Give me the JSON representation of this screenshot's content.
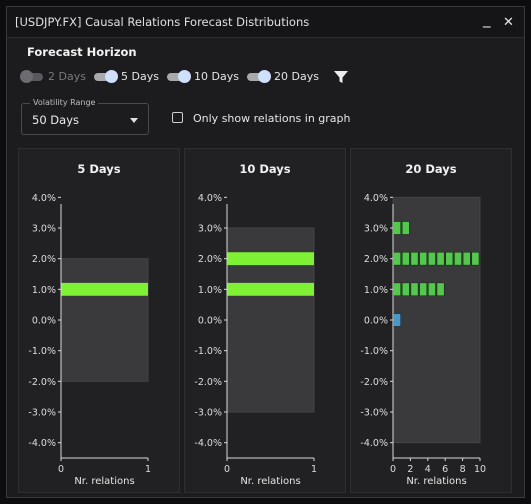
{
  "window": {
    "title": "[USDJPY.FX] Causal Relations Forecast Distributions"
  },
  "window_controls": {
    "minimize": "_",
    "close": "✕"
  },
  "forecast_horizon": {
    "heading": "Forecast Horizon",
    "toggles": [
      {
        "label": "2 Days",
        "enabled": false
      },
      {
        "label": "5 Days",
        "enabled": true
      },
      {
        "label": "10 Days",
        "enabled": true
      },
      {
        "label": "20 Days",
        "enabled": true
      }
    ],
    "filter_icon": "filter-icon"
  },
  "volatility_range": {
    "legend": "Volatility Range",
    "value": "50 Days"
  },
  "only_relations": {
    "label": "Only show relations in graph",
    "checked": false
  },
  "colors": {
    "band": "#3a3a3d",
    "bar_green": "#7ef135",
    "square_green": "#52c94a",
    "square_blue": "#4a98c8",
    "axis": "#d9d9d9"
  },
  "chart_data": [
    {
      "type": "bar",
      "title": "5 Days",
      "xlabel": "Nr. relations",
      "ylabel": "",
      "y_ticks": [
        "4.0%",
        "3.0%",
        "2.0%",
        "1.0%",
        "0.0%",
        "-1.0%",
        "-2.0%",
        "-3.0%",
        "-4.0%"
      ],
      "x_ticks": [
        "0",
        "1"
      ],
      "ylim": [
        -4.5,
        4.5
      ],
      "xlim": [
        0,
        1
      ],
      "band": [
        -2.0,
        2.0
      ],
      "bars": [
        {
          "y": 1.0,
          "count": 1
        }
      ]
    },
    {
      "type": "bar",
      "title": "10 Days",
      "xlabel": "Nr. relations",
      "ylabel": "",
      "y_ticks": [
        "4.0%",
        "3.0%",
        "2.0%",
        "1.0%",
        "0.0%",
        "-1.0%",
        "-2.0%",
        "-3.0%",
        "-4.0%"
      ],
      "x_ticks": [
        "0",
        "1"
      ],
      "ylim": [
        -4.5,
        4.5
      ],
      "xlim": [
        0,
        1
      ],
      "band": [
        -3.0,
        3.0
      ],
      "bars": [
        {
          "y": 2.0,
          "count": 1
        },
        {
          "y": 1.0,
          "count": 1
        }
      ]
    },
    {
      "type": "bar",
      "title": "20 Days",
      "xlabel": "Nr. relations",
      "ylabel": "",
      "y_ticks": [
        "4.0%",
        "3.0%",
        "2.0%",
        "1.0%",
        "0.0%",
        "-1.0%",
        "-2.0%",
        "-3.0%",
        "-4.0%"
      ],
      "x_ticks": [
        "0",
        "2",
        "4",
        "6",
        "8",
        "10"
      ],
      "ylim": [
        -4.5,
        4.5
      ],
      "xlim": [
        0,
        10
      ],
      "band": [
        -4.0,
        4.0
      ],
      "bars": [
        {
          "y": 3.0,
          "count": 2
        },
        {
          "y": 2.0,
          "count": 10
        },
        {
          "y": 1.0,
          "count": 6
        },
        {
          "y": 0.0,
          "count": 1,
          "highlight": true
        }
      ]
    }
  ]
}
